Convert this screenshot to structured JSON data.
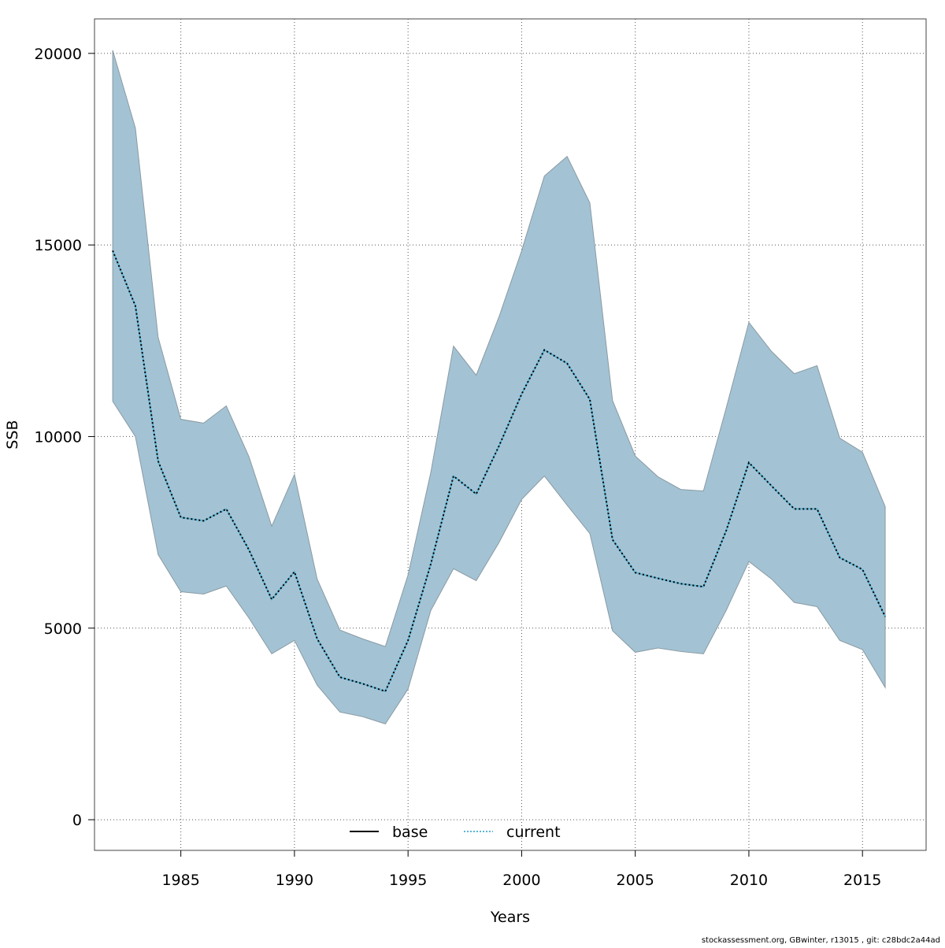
{
  "chart_data": {
    "type": "area",
    "title": "",
    "xlabel": "Years",
    "ylabel": "SSB",
    "xlim": [
      1981.2,
      2017.8
    ],
    "ylim": [
      -800,
      20900
    ],
    "grid": true,
    "x_ticks": [
      1985,
      1990,
      1995,
      2000,
      2005,
      2010,
      2015
    ],
    "y_ticks": [
      0,
      5000,
      10000,
      15000,
      20000
    ],
    "x": [
      1982,
      1983,
      1984,
      1985,
      1986,
      1987,
      1988,
      1989,
      1990,
      1991,
      1992,
      1993,
      1994,
      1995,
      1996,
      1997,
      1998,
      1999,
      2000,
      2001,
      2002,
      2003,
      2004,
      2005,
      2006,
      2007,
      2008,
      2009,
      2010,
      2011,
      2012,
      2013,
      2014,
      2015,
      2016
    ],
    "series": [
      {
        "name": "base",
        "values": [
          14850,
          13410,
          9360,
          7890,
          7800,
          8110,
          7040,
          5750,
          6470,
          4720,
          3720,
          3550,
          3350,
          4680,
          6670,
          8970,
          8500,
          9750,
          11110,
          12260,
          11910,
          10970,
          7310,
          6450,
          6300,
          6160,
          6080,
          7540,
          9320,
          8710,
          8110,
          8110,
          6840,
          6530,
          5300
        ]
      },
      {
        "name": "current",
        "values": [
          14850,
          13410,
          9360,
          7890,
          7800,
          8110,
          7040,
          5750,
          6470,
          4720,
          3720,
          3550,
          3350,
          4680,
          6670,
          8970,
          8500,
          9750,
          11110,
          12260,
          11910,
          10970,
          7310,
          6450,
          6300,
          6160,
          6080,
          7540,
          9320,
          8710,
          8110,
          8110,
          6840,
          6530,
          5300
        ]
      }
    ],
    "confidence_band": {
      "upper": [
        20080,
        18050,
        12590,
        10450,
        10350,
        10800,
        9470,
        7660,
        9010,
        6280,
        4950,
        4720,
        4520,
        6390,
        9060,
        12360,
        11600,
        13120,
        14850,
        16800,
        17310,
        16100,
        10940,
        9490,
        8950,
        8620,
        8580,
        10740,
        12980,
        12220,
        11640,
        11850,
        9960,
        9590,
        8170
      ],
      "lower": [
        10920,
        10000,
        6920,
        5950,
        5890,
        6100,
        5260,
        4330,
        4680,
        3510,
        2810,
        2690,
        2500,
        3410,
        5460,
        6550,
        6240,
        7230,
        8360,
        8970,
        8210,
        7470,
        4930,
        4370,
        4480,
        4390,
        4330,
        5460,
        6740,
        6280,
        5670,
        5560,
        4680,
        4440,
        3450
      ]
    },
    "legend": {
      "position": "bottom-center",
      "entries": [
        "base",
        "current"
      ]
    },
    "colors": {
      "band": "#a3c3d4",
      "band_border": "#8a9aa3",
      "base": "#000000",
      "current": "#5ab4d6"
    },
    "footer": "stockassessment.org, GBwinter, r13015 , git: c28bdc2a44ad"
  }
}
